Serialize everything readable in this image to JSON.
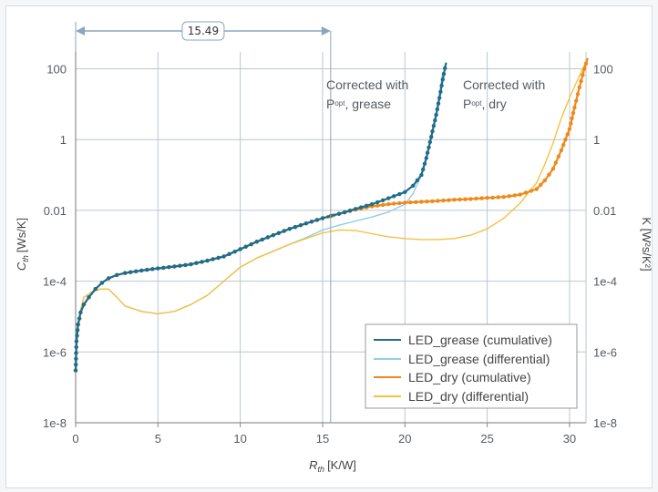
{
  "chart_data": {
    "type": "line",
    "xlabel": "R",
    "xlabel_sub": "th",
    "xlabel_unit": "[K/W]",
    "ylabel_left": "C",
    "ylabel_left_sub": "th",
    "ylabel_left_unit": "[Ws/K]",
    "ylabel_right": "K [W²s/K²]",
    "x_ticks": [
      "0",
      "5",
      "10",
      "15",
      "20",
      "25",
      "30"
    ],
    "y_ticks": [
      "1e-8",
      "1e-6",
      "1e-4",
      "0.01",
      "1",
      "100"
    ],
    "y_right_ticks": [
      "1e-8",
      "1e-6",
      "1e-4",
      "0.01",
      "1",
      "100"
    ],
    "xlim": [
      0,
      31
    ],
    "ylim": [
      1e-08,
      300
    ],
    "y_scale": "log",
    "grid": true,
    "legend_position": "bottom-right",
    "measurement": {
      "label": "15.49",
      "from": 0,
      "to": 15.49
    },
    "annotations": [
      {
        "line1": "Corrected with",
        "p": "P",
        "p_sub": "opt",
        "rest": ", grease"
      },
      {
        "line1": "Corrected with",
        "p": "P",
        "p_sub": "opt",
        "rest": ", dry"
      }
    ],
    "series": [
      {
        "name": "LED_grease (cumulative)",
        "color": "#1f6d8c",
        "marker": "dot",
        "x": [
          0,
          0.05,
          0.15,
          0.3,
          0.5,
          0.8,
          1.2,
          1.6,
          2.0,
          2.5,
          3,
          4,
          5,
          6,
          7,
          8,
          9,
          10,
          11,
          12,
          13,
          14,
          15,
          15.5,
          16,
          17,
          18,
          19,
          20,
          20.5,
          21,
          21.3,
          21.6,
          21.9,
          22.1,
          22.3,
          22.5
        ],
        "y": [
          3e-07,
          2e-06,
          6e-06,
          1.3e-05,
          2.2e-05,
          3.5e-05,
          6e-05,
          9e-05,
          0.00012,
          0.00015,
          0.00017,
          0.0002,
          0.00023,
          0.00026,
          0.0003,
          0.00038,
          0.0005,
          0.0008,
          0.0013,
          0.002,
          0.003,
          0.0043,
          0.006,
          0.007,
          0.008,
          0.011,
          0.015,
          0.022,
          0.033,
          0.05,
          0.1,
          0.3,
          1.2,
          5,
          15,
          50,
          150
        ]
      },
      {
        "name": "LED_grease (differential)",
        "color": "#8ecfe6",
        "marker": "none",
        "x": [
          0,
          0.05,
          0.15,
          0.3,
          0.5,
          1.0,
          1.5,
          2.0,
          2.5,
          3,
          4,
          5,
          6,
          7,
          8,
          9,
          10,
          11,
          12,
          13,
          14,
          15,
          16,
          17,
          18,
          19,
          20,
          20.5,
          21,
          21.4,
          21.8,
          22.1,
          22.3
        ],
        "y": [
          3e-07,
          1.5e-06,
          5e-06,
          1.5e-05,
          3.5e-05,
          5e-05,
          6e-05,
          6e-05,
          3.5e-05,
          2e-05,
          1.4e-05,
          1.2e-05,
          1.4e-05,
          2.2e-05,
          4e-05,
          0.0001,
          0.00025,
          0.00045,
          0.0007,
          0.0011,
          0.0017,
          0.0028,
          0.0038,
          0.005,
          0.0065,
          0.009,
          0.015,
          0.03,
          0.1,
          0.5,
          3,
          20,
          80
        ]
      },
      {
        "name": "LED_dry (cumulative)",
        "color": "#ee8a1a",
        "marker": "dot",
        "x": [
          0,
          0.05,
          0.15,
          0.3,
          0.5,
          0.8,
          1.2,
          1.6,
          2.0,
          2.5,
          3,
          4,
          5,
          6,
          7,
          8,
          9,
          10,
          11,
          12,
          13,
          14,
          15,
          16,
          17,
          18,
          19,
          20,
          21,
          22,
          23,
          24,
          25,
          26,
          27,
          28,
          28.5,
          29,
          29.5,
          30,
          30.3,
          30.6,
          30.9,
          31.1
        ],
        "y": [
          3e-07,
          2e-06,
          6e-06,
          1.3e-05,
          2.2e-05,
          3.5e-05,
          6e-05,
          9e-05,
          0.00012,
          0.00015,
          0.00017,
          0.0002,
          0.00023,
          0.00026,
          0.0003,
          0.00038,
          0.0005,
          0.0008,
          0.0013,
          0.002,
          0.003,
          0.0043,
          0.006,
          0.008,
          0.0105,
          0.013,
          0.015,
          0.0165,
          0.0175,
          0.0185,
          0.02,
          0.021,
          0.0225,
          0.024,
          0.028,
          0.04,
          0.07,
          0.15,
          0.5,
          2,
          8,
          30,
          100,
          200
        ]
      },
      {
        "name": "LED_dry (differential)",
        "color": "#f5c242",
        "marker": "none",
        "x": [
          0,
          0.05,
          0.15,
          0.3,
          0.5,
          1.0,
          1.5,
          2.0,
          2.5,
          3,
          4,
          5,
          6,
          7,
          8,
          9,
          10,
          11,
          12,
          13,
          14,
          15,
          16,
          17,
          18,
          19,
          20,
          21,
          22,
          23,
          24,
          25,
          26,
          27,
          28,
          28.5,
          29,
          29.5,
          30,
          30.4,
          30.8,
          31.1
        ],
        "y": [
          3e-07,
          1.5e-06,
          5e-06,
          1.5e-05,
          3.5e-05,
          5e-05,
          6e-05,
          6e-05,
          3.5e-05,
          2e-05,
          1.4e-05,
          1.2e-05,
          1.4e-05,
          2.2e-05,
          4e-05,
          0.0001,
          0.00025,
          0.00045,
          0.0007,
          0.0011,
          0.0016,
          0.0023,
          0.0028,
          0.0027,
          0.0022,
          0.0018,
          0.0016,
          0.0015,
          0.0015,
          0.0016,
          0.002,
          0.003,
          0.006,
          0.016,
          0.06,
          0.2,
          0.8,
          4,
          15,
          40,
          100,
          200
        ]
      }
    ]
  }
}
